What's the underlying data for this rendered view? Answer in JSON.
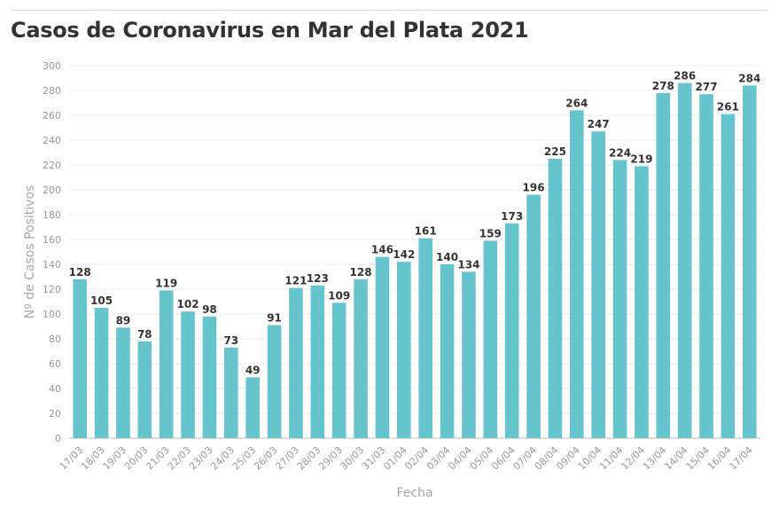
{
  "header": {
    "title": "Casos de Coronavirus en Mar del Plata 2021"
  },
  "chart_data": {
    "type": "bar",
    "title": "Casos de Coronavirus en Mar del Plata 2021",
    "xlabel": "Fecha",
    "ylabel": "Nº de Casos Positivos",
    "ylim": [
      0,
      300
    ],
    "yticks": [
      0,
      20,
      40,
      60,
      80,
      100,
      120,
      140,
      160,
      180,
      200,
      220,
      240,
      260,
      280,
      300
    ],
    "grid": true,
    "bar_color": "#66c4cc",
    "categories": [
      "17/03",
      "18/03",
      "19/03",
      "20/03",
      "21/03",
      "22/03",
      "23/03",
      "24/03",
      "25/03",
      "26/03",
      "27/03",
      "28/03",
      "29/03",
      "30/03",
      "31/03",
      "01/04",
      "02/04",
      "03/04",
      "04/04",
      "05/04",
      "06/04",
      "07/04",
      "08/04",
      "09/04",
      "10/04",
      "11/04",
      "12/04",
      "13/04",
      "14/04",
      "15/04",
      "16/04",
      "17/04"
    ],
    "values": [
      128,
      105,
      89,
      78,
      119,
      102,
      98,
      73,
      49,
      91,
      121,
      123,
      109,
      128,
      146,
      142,
      161,
      140,
      134,
      159,
      173,
      196,
      225,
      264,
      247,
      224,
      219,
      278,
      286,
      277,
      261,
      284
    ]
  }
}
